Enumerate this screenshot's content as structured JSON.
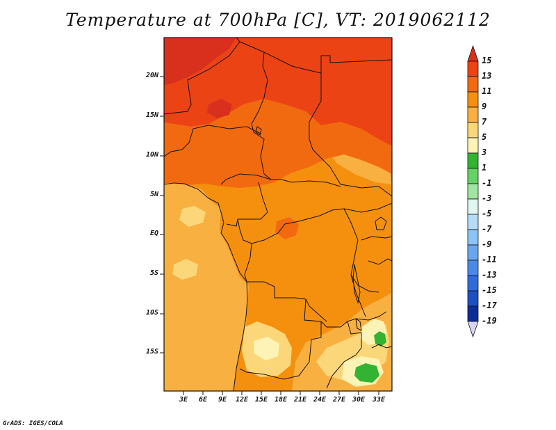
{
  "title": "Temperature at 700hPa [C], VT: 2019062112",
  "credit": "GrADS: IGES/COLA",
  "map": {
    "lat_labels": [
      "20N",
      "15N",
      "10N",
      "5N",
      "EQ",
      "5S",
      "10S",
      "15S"
    ],
    "lon_labels": [
      "3E",
      "6E",
      "9E",
      "12E",
      "15E",
      "18E",
      "21E",
      "24E",
      "27E",
      "30E",
      "33E"
    ]
  },
  "colorbar": {
    "labels": [
      "15",
      "13",
      "11",
      "9",
      "7",
      "5",
      "3",
      "1",
      "-1",
      "-3",
      "-5",
      "-7",
      "-9",
      "-11",
      "-13",
      "-15",
      "-17",
      "-19"
    ],
    "colors": {
      "above_15": "#d8301c",
      "13_15": "#ec4314",
      "11_13": "#f26a10",
      "9_11": "#f5900e",
      "7_9": "#f8b040",
      "5_7": "#fbd77a",
      "3_5": "#fdf3b6",
      "1_3": "#32b432",
      "-1_1": "#64d264",
      "-3_-1": "#a0e6a0",
      "-5_-3": "#e0f6f0",
      "-7_-5": "#b4dcf8",
      "-9_-7": "#8cc4f6",
      "-11_-9": "#6aa6ee",
      "-13_-11": "#4a8ae6",
      "-15_-13": "#2e6cd8",
      "-17_-15": "#1c50c0",
      "-19_-17": "#0c2c96",
      "below_-19": "#d8d4f4"
    }
  }
}
